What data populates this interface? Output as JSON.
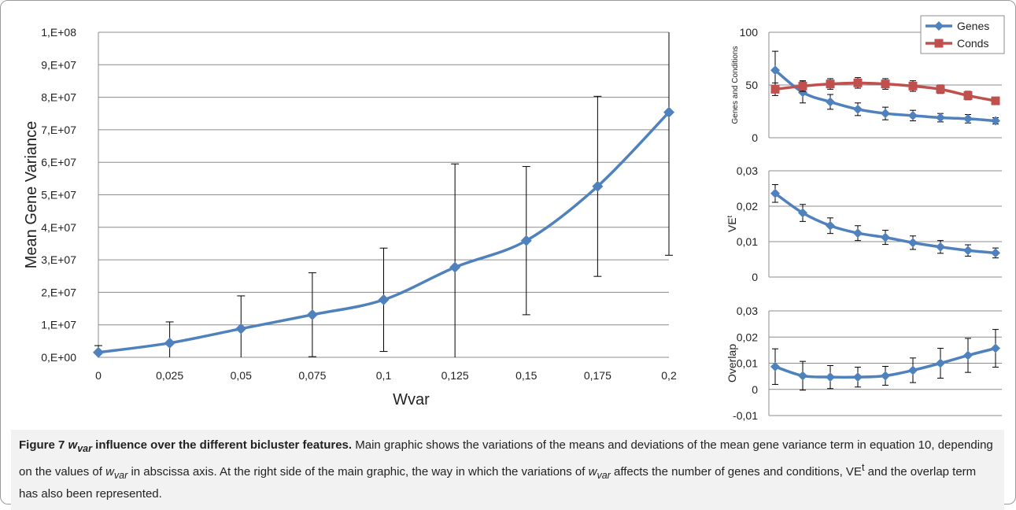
{
  "chart_data": [
    {
      "type": "line",
      "xlabel": "Wvar",
      "ylabel": "Mean Gene Variance",
      "ylim": [
        0,
        100000000
      ],
      "y_ticks": [
        "0,E+00",
        "1,E+07",
        "2,E+07",
        "3,E+07",
        "4,E+07",
        "5,E+07",
        "6,E+07",
        "7,E+07",
        "8,E+07",
        "9,E+07",
        "1,E+08"
      ],
      "categories": [
        "0",
        "0,025",
        "0,05",
        "0,075",
        "0,1",
        "0,125",
        "0,15",
        "0,175",
        "0,2"
      ],
      "series": [
        {
          "color": "#4f81bd",
          "values": [
            1500000,
            4400000,
            8800000,
            13100000,
            17700000,
            27700000,
            35900000,
            52600000,
            75400000
          ],
          "errors": [
            2100000,
            6500000,
            10100000,
            12900000,
            15900000,
            31800000,
            22800000,
            27700000,
            44000000
          ]
        }
      ],
      "grid": true
    },
    {
      "type": "line",
      "ylabel": "Genes and Conditions",
      "ylim": [
        0,
        100
      ],
      "y_ticks": [
        "0",
        "50",
        "100"
      ],
      "legend": "top-right",
      "series": [
        {
          "name": "Genes",
          "color": "#4f81bd",
          "values": [
            64,
            43,
            34,
            27,
            23,
            21,
            19,
            18,
            16
          ],
          "errors": [
            18,
            10,
            7,
            6,
            6,
            5,
            4,
            4,
            3
          ]
        },
        {
          "name": "Conds",
          "color": "#c0504d",
          "values": [
            46,
            49,
            51,
            52,
            51,
            49,
            46,
            40,
            35
          ],
          "errors": [
            6,
            5,
            5,
            5,
            5,
            5,
            4,
            4,
            3
          ]
        }
      ],
      "grid": true
    },
    {
      "type": "line",
      "ylabel": "VE",
      "ylabel_sup": "t",
      "ylim": [
        0,
        0.03
      ],
      "y_ticks": [
        "0",
        "0,01",
        "0,02",
        "0,03"
      ],
      "series": [
        {
          "color": "#4f81bd",
          "values": [
            0.0236,
            0.0181,
            0.0145,
            0.0124,
            0.0112,
            0.0097,
            0.0085,
            0.0075,
            0.0068
          ],
          "errors": [
            0.0025,
            0.0024,
            0.0022,
            0.0021,
            0.002,
            0.0019,
            0.0018,
            0.0016,
            0.0014
          ]
        }
      ],
      "grid": true
    },
    {
      "type": "line",
      "ylabel": "Overlap",
      "ylim": [
        -0.01,
        0.03
      ],
      "y_ticks": [
        "-0,01",
        "0",
        "0,01",
        "0,02",
        "0,03"
      ],
      "series": [
        {
          "color": "#4f81bd",
          "values": [
            0.0087,
            0.0052,
            0.0047,
            0.0047,
            0.0052,
            0.0073,
            0.01,
            0.013,
            0.0157
          ],
          "errors": [
            0.0068,
            0.0055,
            0.0044,
            0.0038,
            0.0036,
            0.0047,
            0.0057,
            0.0065,
            0.0072
          ]
        }
      ],
      "grid": true
    }
  ],
  "caption": {
    "label": "Figure 7",
    "var_main": "w",
    "var_sub": "var",
    "title_rest": " influence over the different bicluster features.",
    "part1": " Main graphic shows the variations of the means and deviations of the mean gene variance term in equation 10, depending on the values of ",
    "part2": " in abscissa axis. At the right side of the main graphic, the way in which the variations of ",
    "part3": " affects the number of genes and conditions, VE",
    "part3_sup": "t",
    "part4": " and the overlap term has also been represented."
  }
}
